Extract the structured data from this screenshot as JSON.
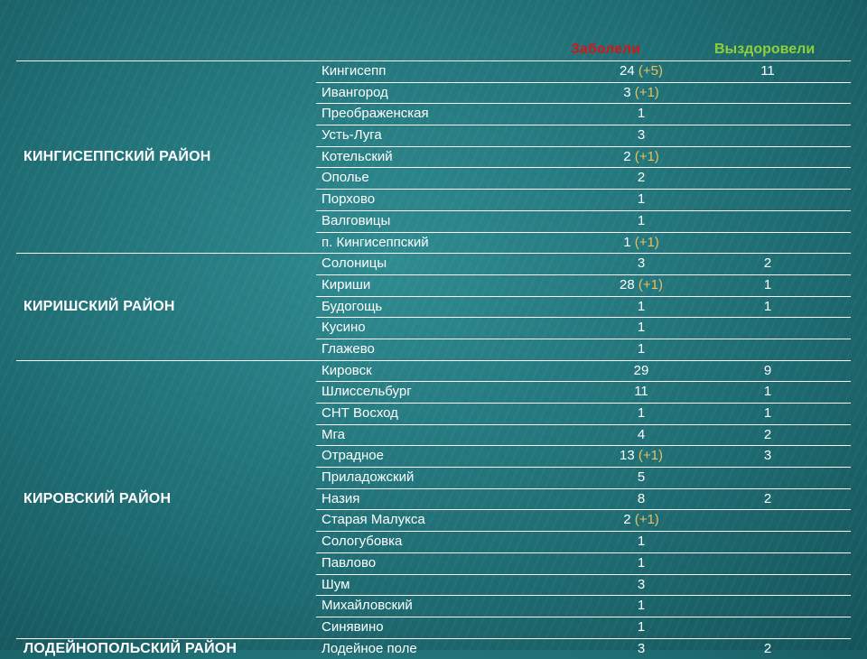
{
  "headers": {
    "sick": "Заболели",
    "recovered": "Выздоровели"
  },
  "colors": {
    "sick_header": "#d01818",
    "recovered_header": "#8fd03a",
    "delta": "#e8c060"
  },
  "districts": [
    {
      "name": "КИНГИСЕППСКИЙ РАЙОН",
      "rows": [
        {
          "town": "Кингисепп",
          "sick": "24",
          "delta": "(+5)",
          "recovered": "11"
        },
        {
          "town": "Ивангород",
          "sick": "3",
          "delta": "(+1)",
          "recovered": ""
        },
        {
          "town": "Преображенская",
          "sick": "1",
          "delta": "",
          "recovered": ""
        },
        {
          "town": "Усть-Луга",
          "sick": "3",
          "delta": "",
          "recovered": ""
        },
        {
          "town": "Котельский",
          "sick": "2",
          "delta": "(+1)",
          "recovered": ""
        },
        {
          "town": "Ополье",
          "sick": "2",
          "delta": "",
          "recovered": ""
        },
        {
          "town": "Порхово",
          "sick": "1",
          "delta": "",
          "recovered": ""
        },
        {
          "town": "Валговицы",
          "sick": "1",
          "delta": "",
          "recovered": ""
        },
        {
          "town": "п. Кингисеппский",
          "sick": "1",
          "delta": "(+1)",
          "recovered": ""
        }
      ]
    },
    {
      "name": "КИРИШСКИЙ РАЙОН",
      "rows": [
        {
          "town": "Солоницы",
          "sick": "3",
          "delta": "",
          "recovered": "2"
        },
        {
          "town": "Кириши",
          "sick": "28",
          "delta": "(+1)",
          "recovered": "1"
        },
        {
          "town": "Будогощь",
          "sick": "1",
          "delta": "",
          "recovered": "1"
        },
        {
          "town": "Кусино",
          "sick": "1",
          "delta": "",
          "recovered": ""
        },
        {
          "town": "Глажево",
          "sick": "1",
          "delta": "",
          "recovered": ""
        }
      ]
    },
    {
      "name": "КИРОВСКИЙ РАЙОН",
      "rows": [
        {
          "town": "Кировск",
          "sick": "29",
          "delta": "",
          "recovered": "9"
        },
        {
          "town": "Шлиссельбург",
          "sick": "11",
          "delta": "",
          "recovered": "1"
        },
        {
          "town": "СНТ Восход",
          "sick": "1",
          "delta": "",
          "recovered": "1"
        },
        {
          "town": "Мга",
          "sick": "4",
          "delta": "",
          "recovered": "2"
        },
        {
          "town": "Отрадное",
          "sick": "13",
          "delta": "(+1)",
          "recovered": "3"
        },
        {
          "town": "Приладожский",
          "sick": "5",
          "delta": "",
          "recovered": ""
        },
        {
          "town": "Назия",
          "sick": "8",
          "delta": "",
          "recovered": "2"
        },
        {
          "town": "Старая Малукса",
          "sick": "2",
          "delta": "(+1)",
          "recovered": ""
        },
        {
          "town": "Сологубовка",
          "sick": "1",
          "delta": "",
          "recovered": ""
        },
        {
          "town": "Павлово",
          "sick": "1",
          "delta": "",
          "recovered": ""
        },
        {
          "town": "Шум",
          "sick": "3",
          "delta": "",
          "recovered": ""
        },
        {
          "town": "Михайловский",
          "sick": "1",
          "delta": "",
          "recovered": ""
        },
        {
          "town": "Синявино",
          "sick": "1",
          "delta": "",
          "recovered": ""
        }
      ]
    },
    {
      "name": "ЛОДЕЙНОПОЛЬСКИЙ РАЙОН",
      "rows": [
        {
          "town": "Лодейное поле",
          "sick": "3",
          "delta": "",
          "recovered": "2"
        }
      ]
    }
  ]
}
